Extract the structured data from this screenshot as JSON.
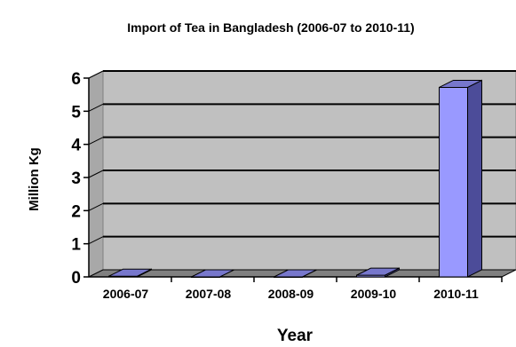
{
  "chart_data": {
    "type": "bar",
    "title": "Import of Tea in Bangladesh (2006-07 to 2010-11)",
    "xlabel": "Year",
    "ylabel": "Million Kg",
    "categories": [
      "2006-07",
      "2007-08",
      "2008-09",
      "2009-10",
      "2010-11"
    ],
    "values": [
      0.02,
      0.0,
      0.0,
      0.05,
      5.72
    ],
    "ylim": [
      0,
      6
    ],
    "yticks": [
      0,
      1,
      2,
      3,
      4,
      5,
      6
    ],
    "grid": true,
    "legend": "none",
    "style": "3d",
    "colors": {
      "bar_front": "#9999ff",
      "bar_side": "#4c4c99",
      "bar_top": "#7777cc",
      "wall": "#c0c0c0",
      "floor": "#808080"
    }
  }
}
